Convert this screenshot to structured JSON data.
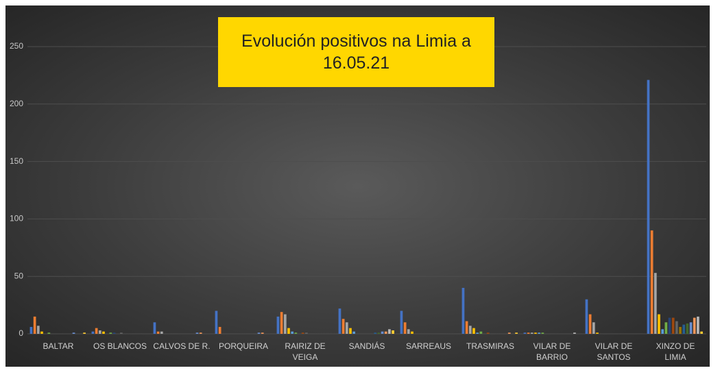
{
  "chart_data": {
    "type": "bar",
    "title": "Evolución positivos na Limia a 16.05.21",
    "categories": [
      "BALTAR",
      "OS BLANCOS",
      "CALVOS DE R.",
      "PORQUEIRA",
      "RAIRIZ DE\nVEIGA",
      "SANDIÁS",
      "SARREAUS",
      "TRASMIRAS",
      "VILAR DE\nBARRIO",
      "VILAR DE\nSANTOS",
      "XINZO DE LIMIA"
    ],
    "series": [
      {
        "color": "#4472c4",
        "values": [
          6,
          2,
          10,
          20,
          15,
          22,
          20,
          40,
          1,
          30,
          221
        ]
      },
      {
        "color": "#ed7d31",
        "values": [
          15,
          5,
          2,
          6,
          19,
          13,
          10,
          11,
          1,
          17,
          90
        ]
      },
      {
        "color": "#a5a5a5",
        "values": [
          7,
          3,
          2,
          0,
          17,
          10,
          4,
          7,
          1,
          10,
          53
        ]
      },
      {
        "color": "#ffc000",
        "values": [
          2,
          2,
          0,
          0,
          5,
          5,
          2,
          5,
          1,
          1,
          17
        ]
      },
      {
        "color": "#5b9bd5",
        "values": [
          0,
          0,
          0,
          0,
          2,
          2,
          0,
          1,
          1,
          0,
          4
        ]
      },
      {
        "color": "#70ad47",
        "values": [
          1,
          1,
          0,
          0,
          1,
          0,
          0,
          2,
          1,
          0,
          10
        ]
      },
      {
        "color": "#264478",
        "values": [
          0,
          1,
          0,
          0,
          0,
          0,
          0,
          0,
          0,
          0,
          14
        ]
      },
      {
        "color": "#9e480e",
        "values": [
          0,
          0,
          0,
          0,
          1,
          0,
          0,
          1,
          0,
          0,
          14
        ]
      },
      {
        "color": "#636363",
        "values": [
          0,
          1,
          0,
          0,
          1,
          0,
          0,
          0,
          0,
          0,
          11
        ]
      },
      {
        "color": "#997300",
        "values": [
          0,
          0,
          0,
          0,
          0,
          0,
          0,
          0,
          0,
          0,
          6
        ]
      },
      {
        "color": "#255e91",
        "values": [
          0,
          0,
          0,
          0,
          0,
          1,
          0,
          0,
          0,
          0,
          8
        ]
      },
      {
        "color": "#43682b",
        "values": [
          0,
          0,
          0,
          0,
          0,
          1,
          0,
          0,
          0,
          0,
          9
        ]
      },
      {
        "color": "#698ed0",
        "values": [
          1,
          0,
          1,
          1,
          0,
          2,
          0,
          0,
          0,
          0,
          10
        ]
      },
      {
        "color": "#f1975a",
        "values": [
          0,
          0,
          1,
          1,
          0,
          2,
          0,
          1,
          0,
          0,
          14
        ]
      },
      {
        "color": "#b7b7b7",
        "values": [
          0,
          0,
          0,
          0,
          0,
          4,
          0,
          0,
          1,
          0,
          15
        ]
      },
      {
        "color": "#ffcd33",
        "values": [
          1,
          0,
          0,
          0,
          0,
          3,
          0,
          1,
          0,
          0,
          2
        ]
      }
    ],
    "ylim": [
      0,
      250
    ],
    "yticks": [
      0,
      50,
      100,
      150,
      200,
      250
    ],
    "grid": true
  }
}
